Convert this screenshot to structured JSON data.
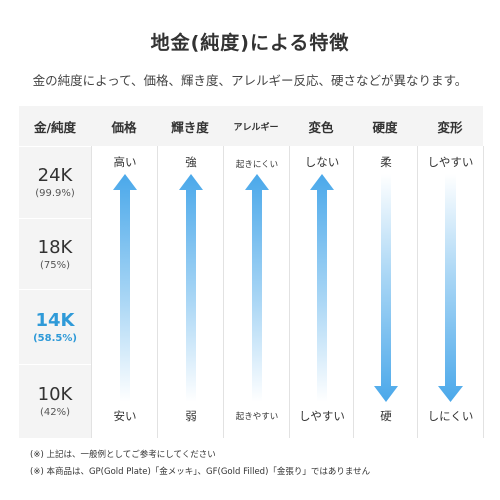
{
  "title": "地金(純度)による特徴",
  "subtitle": "金の純度によって、価格、輝き度、アレルギー反応、硬さなどが異なります。",
  "table": {
    "corner_header": "金/純度",
    "columns": [
      {
        "header": "価格",
        "top": "高い",
        "bottom": "安い",
        "direction": "up"
      },
      {
        "header": "輝き度",
        "top": "強",
        "bottom": "弱",
        "direction": "up"
      },
      {
        "header": "アレルギー",
        "top": "起きにくい",
        "bottom": "起きやすい",
        "direction": "up"
      },
      {
        "header": "変色",
        "top": "しない",
        "bottom": "しやすい",
        "direction": "up"
      },
      {
        "header": "硬度",
        "top": "柔",
        "bottom": "硬",
        "direction": "down"
      },
      {
        "header": "変形",
        "top": "しやすい",
        "bottom": "しにくい",
        "direction": "down"
      }
    ],
    "rows": [
      {
        "karat": "24K",
        "purity": "(99.9%)",
        "highlight": false
      },
      {
        "karat": "18K",
        "purity": "(75%)",
        "highlight": false
      },
      {
        "karat": "14K",
        "purity": "(58.5%)",
        "highlight": true
      },
      {
        "karat": "10K",
        "purity": "(42%)",
        "highlight": false
      }
    ]
  },
  "notes": [
    "(※) 上記は、一般例としてご参考にしてください",
    "(※) 本商品は、GP(Gold Plate)「金メッキ」、GF(Gold Filled)「金張り」ではありません"
  ],
  "colors": {
    "arrow_blue": "#4aa8ea",
    "highlight": "#2f9ad8",
    "cell_bg": "#f4f4f4"
  }
}
